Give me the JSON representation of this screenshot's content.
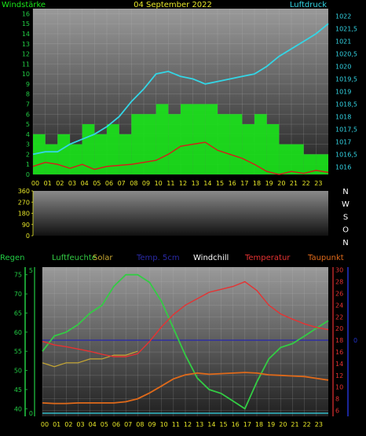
{
  "colors": {
    "wind": "#19e619",
    "gust": "#19e619",
    "pressure": "#33d6e6",
    "wind_mean": "#d91a1a",
    "humidity": "#33cc44",
    "solar": "#c8a832",
    "soil_temp": "#2a2aa8",
    "windchill": "#ffffff",
    "temperature": "#e63232",
    "dewpoint": "#e06a1a",
    "rain": "#22cc44",
    "axis_yellow": "#e6e628",
    "title_yellow": "#e6e628",
    "tick_green": "#22cc44",
    "tick_red": "#e63232",
    "tick_cyan": "#33d6e6",
    "blue_axis": "#2233cc",
    "compass": "#ffffff"
  },
  "header": {
    "left_label": "Windstärke",
    "title": "04 September 2022",
    "right_label": "Luftdruck"
  },
  "hours": [
    "00",
    "01",
    "02",
    "03",
    "04",
    "05",
    "06",
    "07",
    "08",
    "09",
    "10",
    "11",
    "12",
    "13",
    "14",
    "15",
    "16",
    "17",
    "18",
    "19",
    "20",
    "21",
    "22",
    "23"
  ],
  "legend": {
    "rain": "Regen",
    "humidity": "Luftfeuchte",
    "solar": "Solar",
    "soil": "Temp. 5cm",
    "windchill": "Windchill",
    "temperature": "Temperatur",
    "dewpoint": "Taupunkt"
  },
  "chart_data": [
    {
      "type": "line",
      "name": "wind-pressure",
      "x_unit": "hour",
      "left_axis": {
        "label": "Windstärke",
        "ticks": [
          0,
          1,
          2,
          3,
          4,
          5,
          6,
          7,
          8,
          9,
          10,
          11,
          12,
          13,
          14,
          15,
          16
        ],
        "range": [
          0,
          16.5
        ]
      },
      "right_axis": {
        "label": "Luftdruck",
        "ticks": [
          "1016",
          "1016,5",
          "1017",
          "1017,5",
          "1018",
          "1018,5",
          "1019",
          "1019,5",
          "1020",
          "1020,5",
          "1021",
          "1021,5",
          "1022"
        ],
        "range": [
          1015.7,
          1022.3
        ]
      },
      "series": [
        {
          "name": "Windstärke",
          "x": [
            0,
            1,
            2,
            3,
            4,
            5,
            6,
            7,
            8,
            9,
            10,
            11,
            12,
            13,
            14,
            15,
            16,
            17,
            18,
            19,
            20,
            21,
            22,
            23,
            24
          ],
          "values": [
            4,
            3,
            4,
            3,
            5,
            4,
            5,
            4,
            6,
            6,
            7,
            6,
            7,
            7,
            7,
            6,
            6,
            5,
            6,
            5,
            3,
            3,
            2,
            2,
            2
          ]
        },
        {
          "name": "Luftdruck",
          "x": [
            0,
            1,
            2,
            3,
            4,
            5,
            6,
            7,
            8,
            9,
            10,
            11,
            12,
            13,
            14,
            15,
            16,
            17,
            18,
            19,
            20,
            21,
            22,
            23,
            24
          ],
          "values": [
            1016.5,
            1016.6,
            1016.6,
            1016.9,
            1017.1,
            1017.3,
            1017.6,
            1018.0,
            1018.6,
            1019.1,
            1019.7,
            1019.8,
            1019.6,
            1019.5,
            1019.3,
            1019.4,
            1019.5,
            1019.6,
            1019.7,
            1020.0,
            1020.4,
            1020.7,
            1021.0,
            1021.3,
            1021.7
          ]
        },
        {
          "name": "Windmittel",
          "x": [
            0,
            1,
            2,
            3,
            4,
            5,
            6,
            7,
            8,
            9,
            10,
            11,
            12,
            13,
            14,
            15,
            16,
            17,
            18,
            19,
            20,
            21,
            22,
            23,
            24
          ],
          "values": [
            0.8,
            1.2,
            1.0,
            0.6,
            1.0,
            0.5,
            0.8,
            0.9,
            1.0,
            1.2,
            1.4,
            2.0,
            2.8,
            3.0,
            3.2,
            2.4,
            2.0,
            1.6,
            1.0,
            0.3,
            0.0,
            0.3,
            0.1,
            0.4,
            0.2
          ]
        }
      ]
    },
    {
      "type": "area",
      "name": "wind-direction",
      "x_unit": "hour",
      "y_axis": {
        "ticks": [
          0,
          90,
          180,
          270,
          360
        ],
        "range": [
          0,
          360
        ]
      },
      "compass": [
        "N",
        "W",
        "S",
        "O",
        "N"
      ],
      "series": []
    },
    {
      "type": "line",
      "name": "weather",
      "x_unit": "hour",
      "left_axis_1": {
        "ticks": [
          40,
          45,
          50,
          55,
          60,
          65,
          70,
          75
        ],
        "range": [
          38,
          77
        ]
      },
      "left_axis_2": {
        "ticks": [
          0,
          5
        ],
        "range": [
          0,
          5
        ]
      },
      "right_axis": {
        "ticks": [
          6,
          8,
          10,
          12,
          14,
          16,
          18,
          20,
          22,
          24,
          26,
          28,
          30
        ],
        "range": [
          5,
          30.5
        ]
      },
      "blue_axis_label": "0",
      "series": [
        {
          "name": "Luftfeuchte",
          "x": [
            0,
            1,
            2,
            3,
            4,
            5,
            6,
            7,
            8,
            9,
            10,
            11,
            12,
            13,
            14,
            15,
            16,
            17,
            18,
            19,
            20,
            21,
            22,
            23,
            24
          ],
          "values": [
            55,
            59,
            60,
            62,
            65,
            67,
            72,
            75,
            75,
            73,
            68,
            61,
            54,
            48,
            45,
            44,
            42,
            40,
            47,
            53,
            56,
            57,
            59,
            61,
            63
          ]
        },
        {
          "name": "Solar",
          "x": [
            0,
            1,
            2,
            3,
            4,
            5,
            6,
            7,
            8
          ],
          "values": [
            52,
            51,
            52,
            52,
            53,
            53,
            54,
            54,
            55
          ]
        },
        {
          "name": "Temperatur",
          "x": [
            0,
            1,
            2,
            3,
            4,
            5,
            6,
            7,
            8,
            9,
            10,
            11,
            12,
            13,
            14,
            15,
            16,
            17,
            18,
            19,
            20,
            21,
            22,
            23,
            24
          ],
          "values": [
            17.8,
            17.2,
            16.9,
            16.5,
            16.1,
            15.6,
            15.2,
            15.2,
            15.7,
            17.8,
            20.3,
            22.4,
            24.0,
            25.1,
            26.2,
            26.7,
            27.2,
            28.0,
            26.5,
            24.0,
            22.5,
            21.6,
            20.8,
            20.2,
            19.8
          ]
        },
        {
          "name": "Taupunkt",
          "x": [
            0,
            1,
            2,
            3,
            4,
            5,
            6,
            7,
            8,
            9,
            10,
            11,
            12,
            13,
            14,
            15,
            16,
            17,
            18,
            19,
            20,
            21,
            22,
            23,
            24
          ],
          "values": [
            7.3,
            7.2,
            7.2,
            7.3,
            7.3,
            7.3,
            7.3,
            7.5,
            8.0,
            9.0,
            10.2,
            11.4,
            12.1,
            12.4,
            12.2,
            12.3,
            12.4,
            12.5,
            12.4,
            12.1,
            12.0,
            11.9,
            11.8,
            11.5,
            11.2
          ]
        },
        {
          "name": "Temp. 5cm",
          "x": [
            0,
            24
          ],
          "values": [
            18.0,
            18.0
          ]
        }
      ]
    }
  ]
}
